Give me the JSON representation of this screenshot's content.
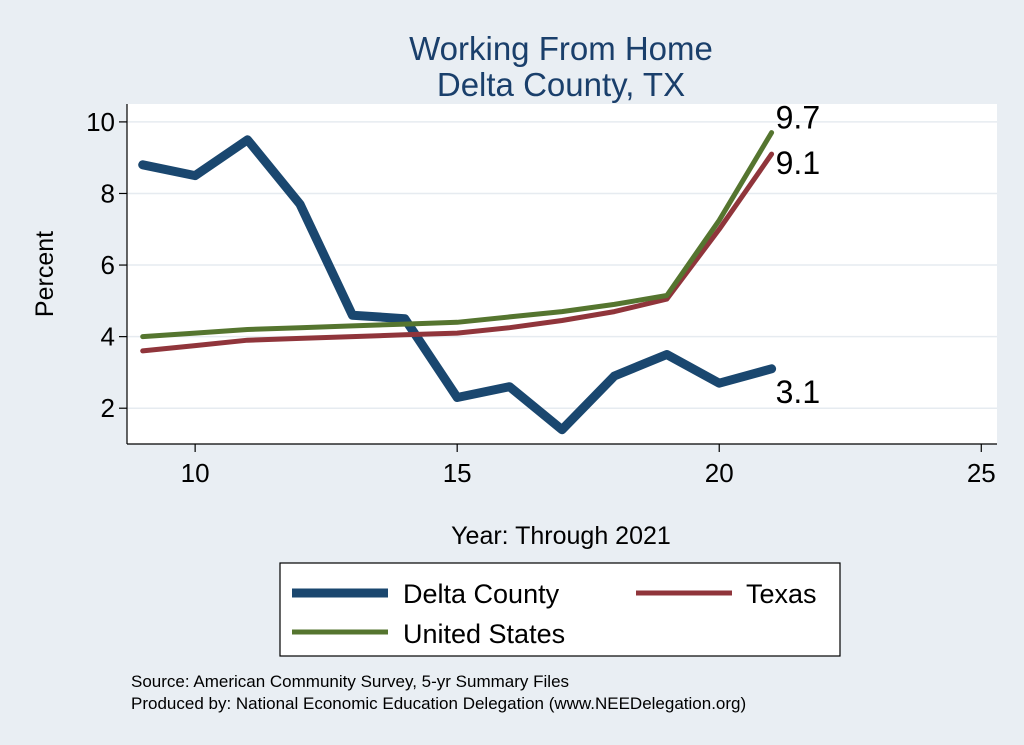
{
  "chart_data": {
    "type": "line",
    "title": [
      "Working From Home",
      "Delta County, TX"
    ],
    "xlabel": "Year: Through 2021",
    "ylabel": "Percent",
    "xlim": [
      8.7,
      25.3
    ],
    "ylim": [
      1.0,
      10.5
    ],
    "xticks": [
      10,
      15,
      20,
      25
    ],
    "yticks": [
      2,
      4,
      6,
      8,
      10
    ],
    "grid": true,
    "legend_position": "bottom",
    "x": [
      9,
      10,
      11,
      12,
      13,
      14,
      15,
      16,
      17,
      18,
      19,
      20,
      21
    ],
    "series": [
      {
        "name": "Delta County",
        "color": "#1a476f",
        "values": [
          8.8,
          8.5,
          9.5,
          7.7,
          4.6,
          4.5,
          2.3,
          2.6,
          1.4,
          2.9,
          3.5,
          2.7,
          3.1
        ],
        "end_label": "3.1"
      },
      {
        "name": "Texas",
        "color": "#90353b",
        "values": [
          3.6,
          3.75,
          3.9,
          3.95,
          4.0,
          4.05,
          4.1,
          4.25,
          4.45,
          4.7,
          5.05,
          7.0,
          9.1
        ],
        "end_label": "9.1"
      },
      {
        "name": "United States",
        "color": "#55752f",
        "values": [
          4.0,
          4.1,
          4.2,
          4.25,
          4.3,
          4.35,
          4.4,
          4.55,
          4.7,
          4.9,
          5.15,
          7.25,
          9.7
        ],
        "end_label": "9.7"
      }
    ]
  },
  "source_lines": [
    "Source: American Community Survey, 5-yr Summary Files",
    "Produced by: National Economic Education Delegation (www.NEEDelegation.org)"
  ]
}
